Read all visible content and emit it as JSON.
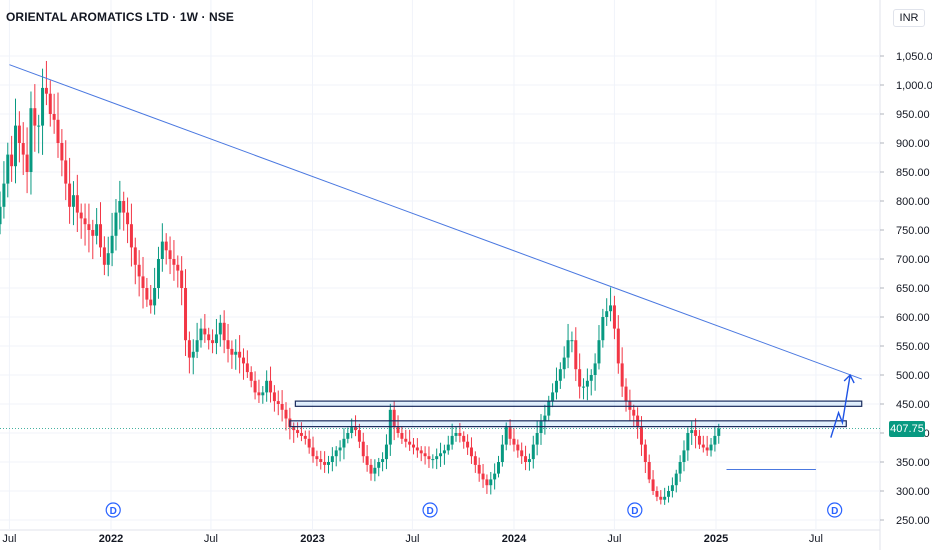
{
  "header": {
    "title": "ORIENTAL AROMATICS LTD · 1W · NSE",
    "currency": "INR"
  },
  "last_price": "407.75",
  "colors": {
    "up": "#089981",
    "down": "#f23645",
    "trendline": "#4a78e0",
    "zone": "#3f5fb8",
    "arrow": "#1e53e5"
  },
  "dividend_marker": "D",
  "chart_data": {
    "type": "candlestick",
    "title": "ORIENTAL AROMATICS LTD · 1W · NSE",
    "ylim": [
      240,
      1100
    ],
    "y_ticks": [
      "1,050.00",
      "1,000.00",
      "950.00",
      "900.00",
      "850.00",
      "800.00",
      "750.00",
      "700.00",
      "650.00",
      "600.00",
      "550.00",
      "500.00",
      "450.00",
      "400.00",
      "350.00",
      "300.00",
      "250.00"
    ],
    "y_tick_values": [
      1050,
      1000,
      950,
      900,
      850,
      800,
      750,
      700,
      650,
      600,
      550,
      500,
      450,
      400,
      350,
      300,
      250
    ],
    "x_ticks": [
      "Jul",
      "2022",
      "Jul",
      "2023",
      "Jul",
      "2024",
      "Jul",
      "2025",
      "Jul"
    ],
    "x_tick_dates": [
      "2021-07-01",
      "2022-01-01",
      "2022-07-01",
      "2023-01-01",
      "2023-07-01",
      "2024-01-01",
      "2024-07-01",
      "2025-01-01",
      "2025-07-01"
    ],
    "x_tick_bold": [
      false,
      true,
      false,
      true,
      false,
      true,
      false,
      true,
      false
    ],
    "dividend_dates": [
      "2022-01-05",
      "2023-08-02",
      "2024-08-07",
      "2025-08-04"
    ],
    "last_price": 407.75,
    "trendline": {
      "from": {
        "date": "2021-07-01",
        "price": 1035
      },
      "to": {
        "date": "2025-09-22",
        "price": 493
      }
    },
    "zones": [
      {
        "from_date": "2022-12-01",
        "to_date": "2025-09-22",
        "low": 446,
        "high": 455
      },
      {
        "from_date": "2022-11-21",
        "to_date": "2025-08-25",
        "low": 411,
        "high": 421
      }
    ],
    "support_line": {
      "from_date": "2025-01-20",
      "to_date": "2025-07-01",
      "price": 337
    },
    "projection": [
      {
        "date": "2025-07-28",
        "price": 392
      },
      {
        "date": "2025-08-11",
        "price": 435
      },
      {
        "date": "2025-08-18",
        "price": 418
      },
      {
        "date": "2025-09-01",
        "price": 500
      }
    ],
    "weekly_close": [
      760,
      790,
      830,
      880,
      860,
      930,
      900,
      880,
      850,
      960,
      930,
      930,
      995,
      985,
      950,
      940,
      900,
      870,
      830,
      790,
      810,
      780,
      770,
      760,
      750,
      740,
      760,
      720,
      690,
      710,
      740,
      780,
      800,
      780,
      760,
      720,
      690,
      670,
      650,
      630,
      620,
      650,
      700,
      730,
      715,
      700,
      690,
      680,
      650,
      560,
      530,
      540,
      560,
      580,
      570,
      560,
      555,
      570,
      590,
      560,
      545,
      535,
      540,
      530,
      520,
      505,
      490,
      470,
      465,
      470,
      490,
      470,
      455,
      450,
      440,
      425,
      410,
      405,
      400,
      395,
      390,
      375,
      360,
      355,
      350,
      345,
      350,
      360,
      370,
      375,
      390,
      400,
      410,
      405,
      385,
      360,
      345,
      330,
      340,
      350,
      355,
      380,
      440,
      410,
      400,
      390,
      385,
      380,
      375,
      370,
      365,
      360,
      355,
      355,
      360,
      365,
      370,
      380,
      395,
      400,
      395,
      385,
      375,
      360,
      345,
      330,
      320,
      310,
      320,
      330,
      350,
      380,
      410,
      390,
      380,
      370,
      360,
      350,
      355,
      380,
      400,
      420,
      430,
      455,
      470,
      490,
      510,
      530,
      560,
      560,
      510,
      480,
      480,
      490,
      500,
      520,
      560,
      600,
      610,
      620,
      580,
      520,
      480,
      455,
      440,
      430,
      410,
      380,
      350,
      320,
      300,
      290,
      285,
      290,
      300,
      310,
      330,
      350,
      370,
      400,
      405,
      395,
      380,
      375,
      370,
      380,
      395,
      407.75
    ],
    "start_date": "2021-06-07",
    "interval": "1W"
  }
}
